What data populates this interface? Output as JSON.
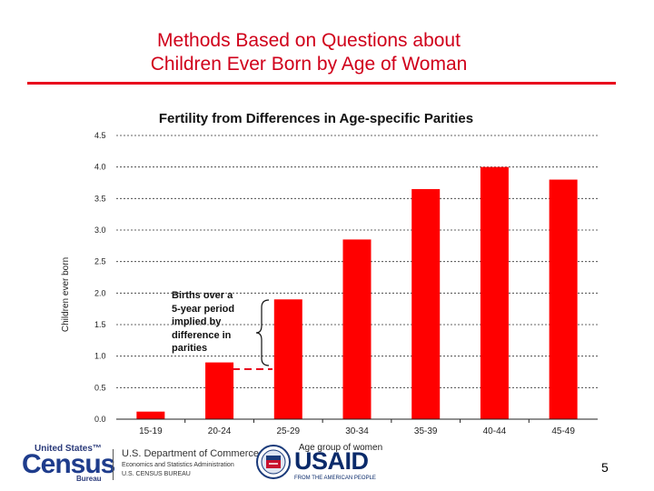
{
  "slide": {
    "title_line1": "Methods Based on Questions about",
    "title_line2": "Children Ever Born by Age of Woman",
    "page_number": "5",
    "accent_color": "#e8001c",
    "title_color": "#d0001a"
  },
  "footer": {
    "census_top": "United States™",
    "census_word": "Census",
    "census_bureau": "Bureau",
    "doc_line1": "U.S. Department of Commerce",
    "doc_line2": "Economics and Statistics Administration",
    "doc_line3": "U.S. CENSUS BUREAU",
    "usaid_word": "USAID",
    "usaid_tag": "FROM THE AMERICAN PEOPLE"
  },
  "annotation": {
    "line1": "Births over a",
    "line2": "5-year period",
    "line3": "implied by",
    "line4": "difference in",
    "line5": "parities"
  },
  "chart_data": {
    "type": "bar",
    "title": "Fertility from Differences in Age-specific Parities",
    "xlabel": "Age group of women",
    "ylabel": "Children ever born",
    "categories": [
      "15-19",
      "20-24",
      "25-29",
      "30-34",
      "35-39",
      "40-44",
      "45-49"
    ],
    "values": [
      0.12,
      0.9,
      1.9,
      2.85,
      3.65,
      4.0,
      3.8
    ],
    "ylim": [
      0,
      4.5
    ],
    "yticks": [
      "0.0",
      "0.5",
      "1.0",
      "1.5",
      "2.0",
      "2.5",
      "3.0",
      "3.5",
      "4.0",
      "4.5"
    ],
    "grid": true,
    "bar_color": "#ff0000"
  }
}
